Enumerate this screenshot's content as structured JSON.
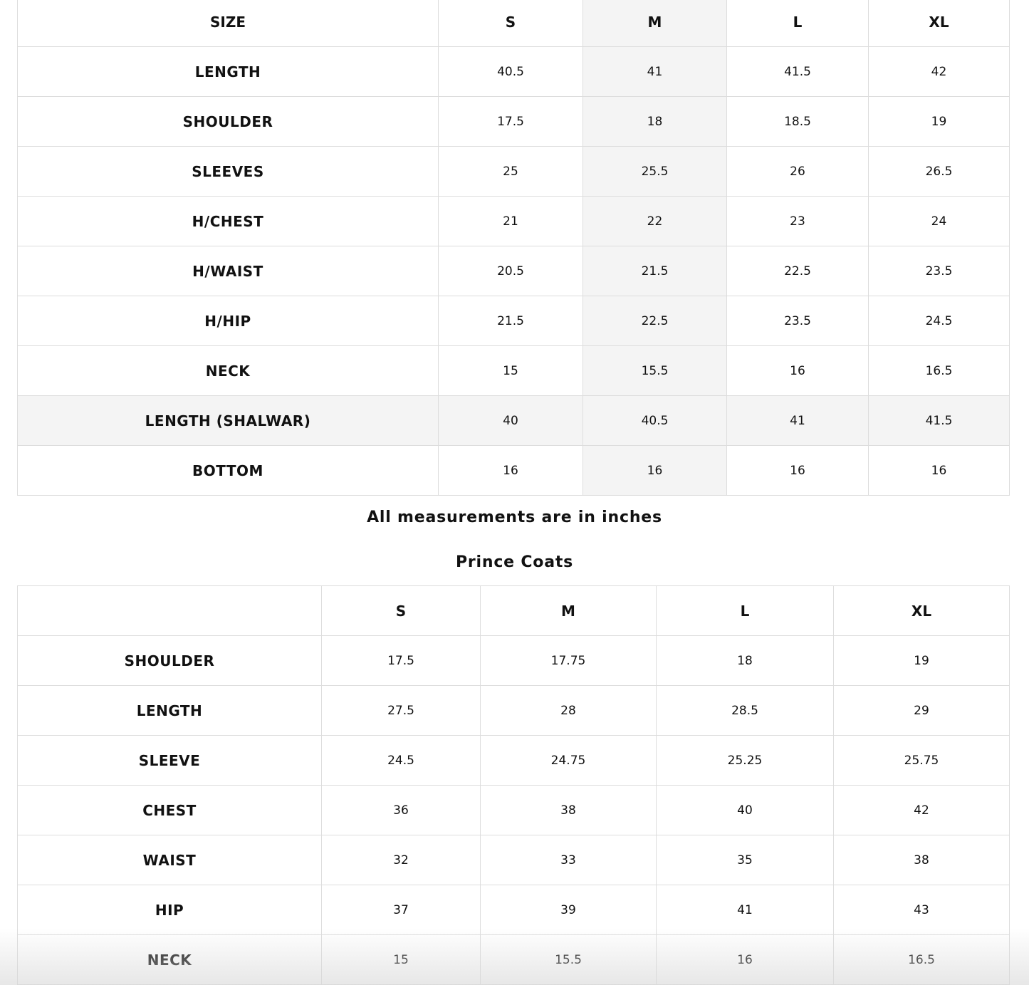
{
  "table1": {
    "headers": [
      "SIZE",
      "S",
      "M",
      "L",
      "XL"
    ],
    "highlight_color": "#f4f4f4",
    "rows": [
      [
        "LENGTH",
        "40.5",
        "41",
        "41.5",
        "42"
      ],
      [
        "SHOULDER",
        "17.5",
        "18",
        "18.5",
        "19"
      ],
      [
        "SLEEVES",
        "25",
        "25.5",
        "26",
        "26.5"
      ],
      [
        "H/CHEST",
        "21",
        "22",
        "23",
        "24"
      ],
      [
        "H/WAIST",
        "20.5",
        "21.5",
        "22.5",
        "23.5"
      ],
      [
        "H/HIP",
        "21.5",
        "22.5",
        "23.5",
        "24.5"
      ],
      [
        "NECK",
        "15",
        "15.5",
        "16",
        "16.5"
      ],
      [
        "LENGTH (SHALWAR)",
        "40",
        "40.5",
        "41",
        "41.5"
      ],
      [
        "BOTTOM",
        "16",
        "16",
        "16",
        "16"
      ]
    ]
  },
  "note": "All measurements are in inches",
  "table2": {
    "title": "Prince Coats",
    "headers": [
      "",
      "S",
      "M",
      "L",
      "XL"
    ],
    "rows": [
      [
        "SHOULDER",
        "17.5",
        "17.75",
        "18",
        "19"
      ],
      [
        "LENGTH",
        "27.5",
        "28",
        "28.5",
        "29"
      ],
      [
        "SLEEVE",
        "24.5",
        "24.75",
        "25.25",
        "25.75"
      ],
      [
        "CHEST",
        "36",
        "38",
        "40",
        "42"
      ],
      [
        "WAIST",
        "32",
        "33",
        "35",
        "38"
      ],
      [
        "HIP",
        "37",
        "39",
        "41",
        "43"
      ],
      [
        "NECK",
        "15",
        "15.5",
        "16",
        "16.5"
      ]
    ]
  }
}
